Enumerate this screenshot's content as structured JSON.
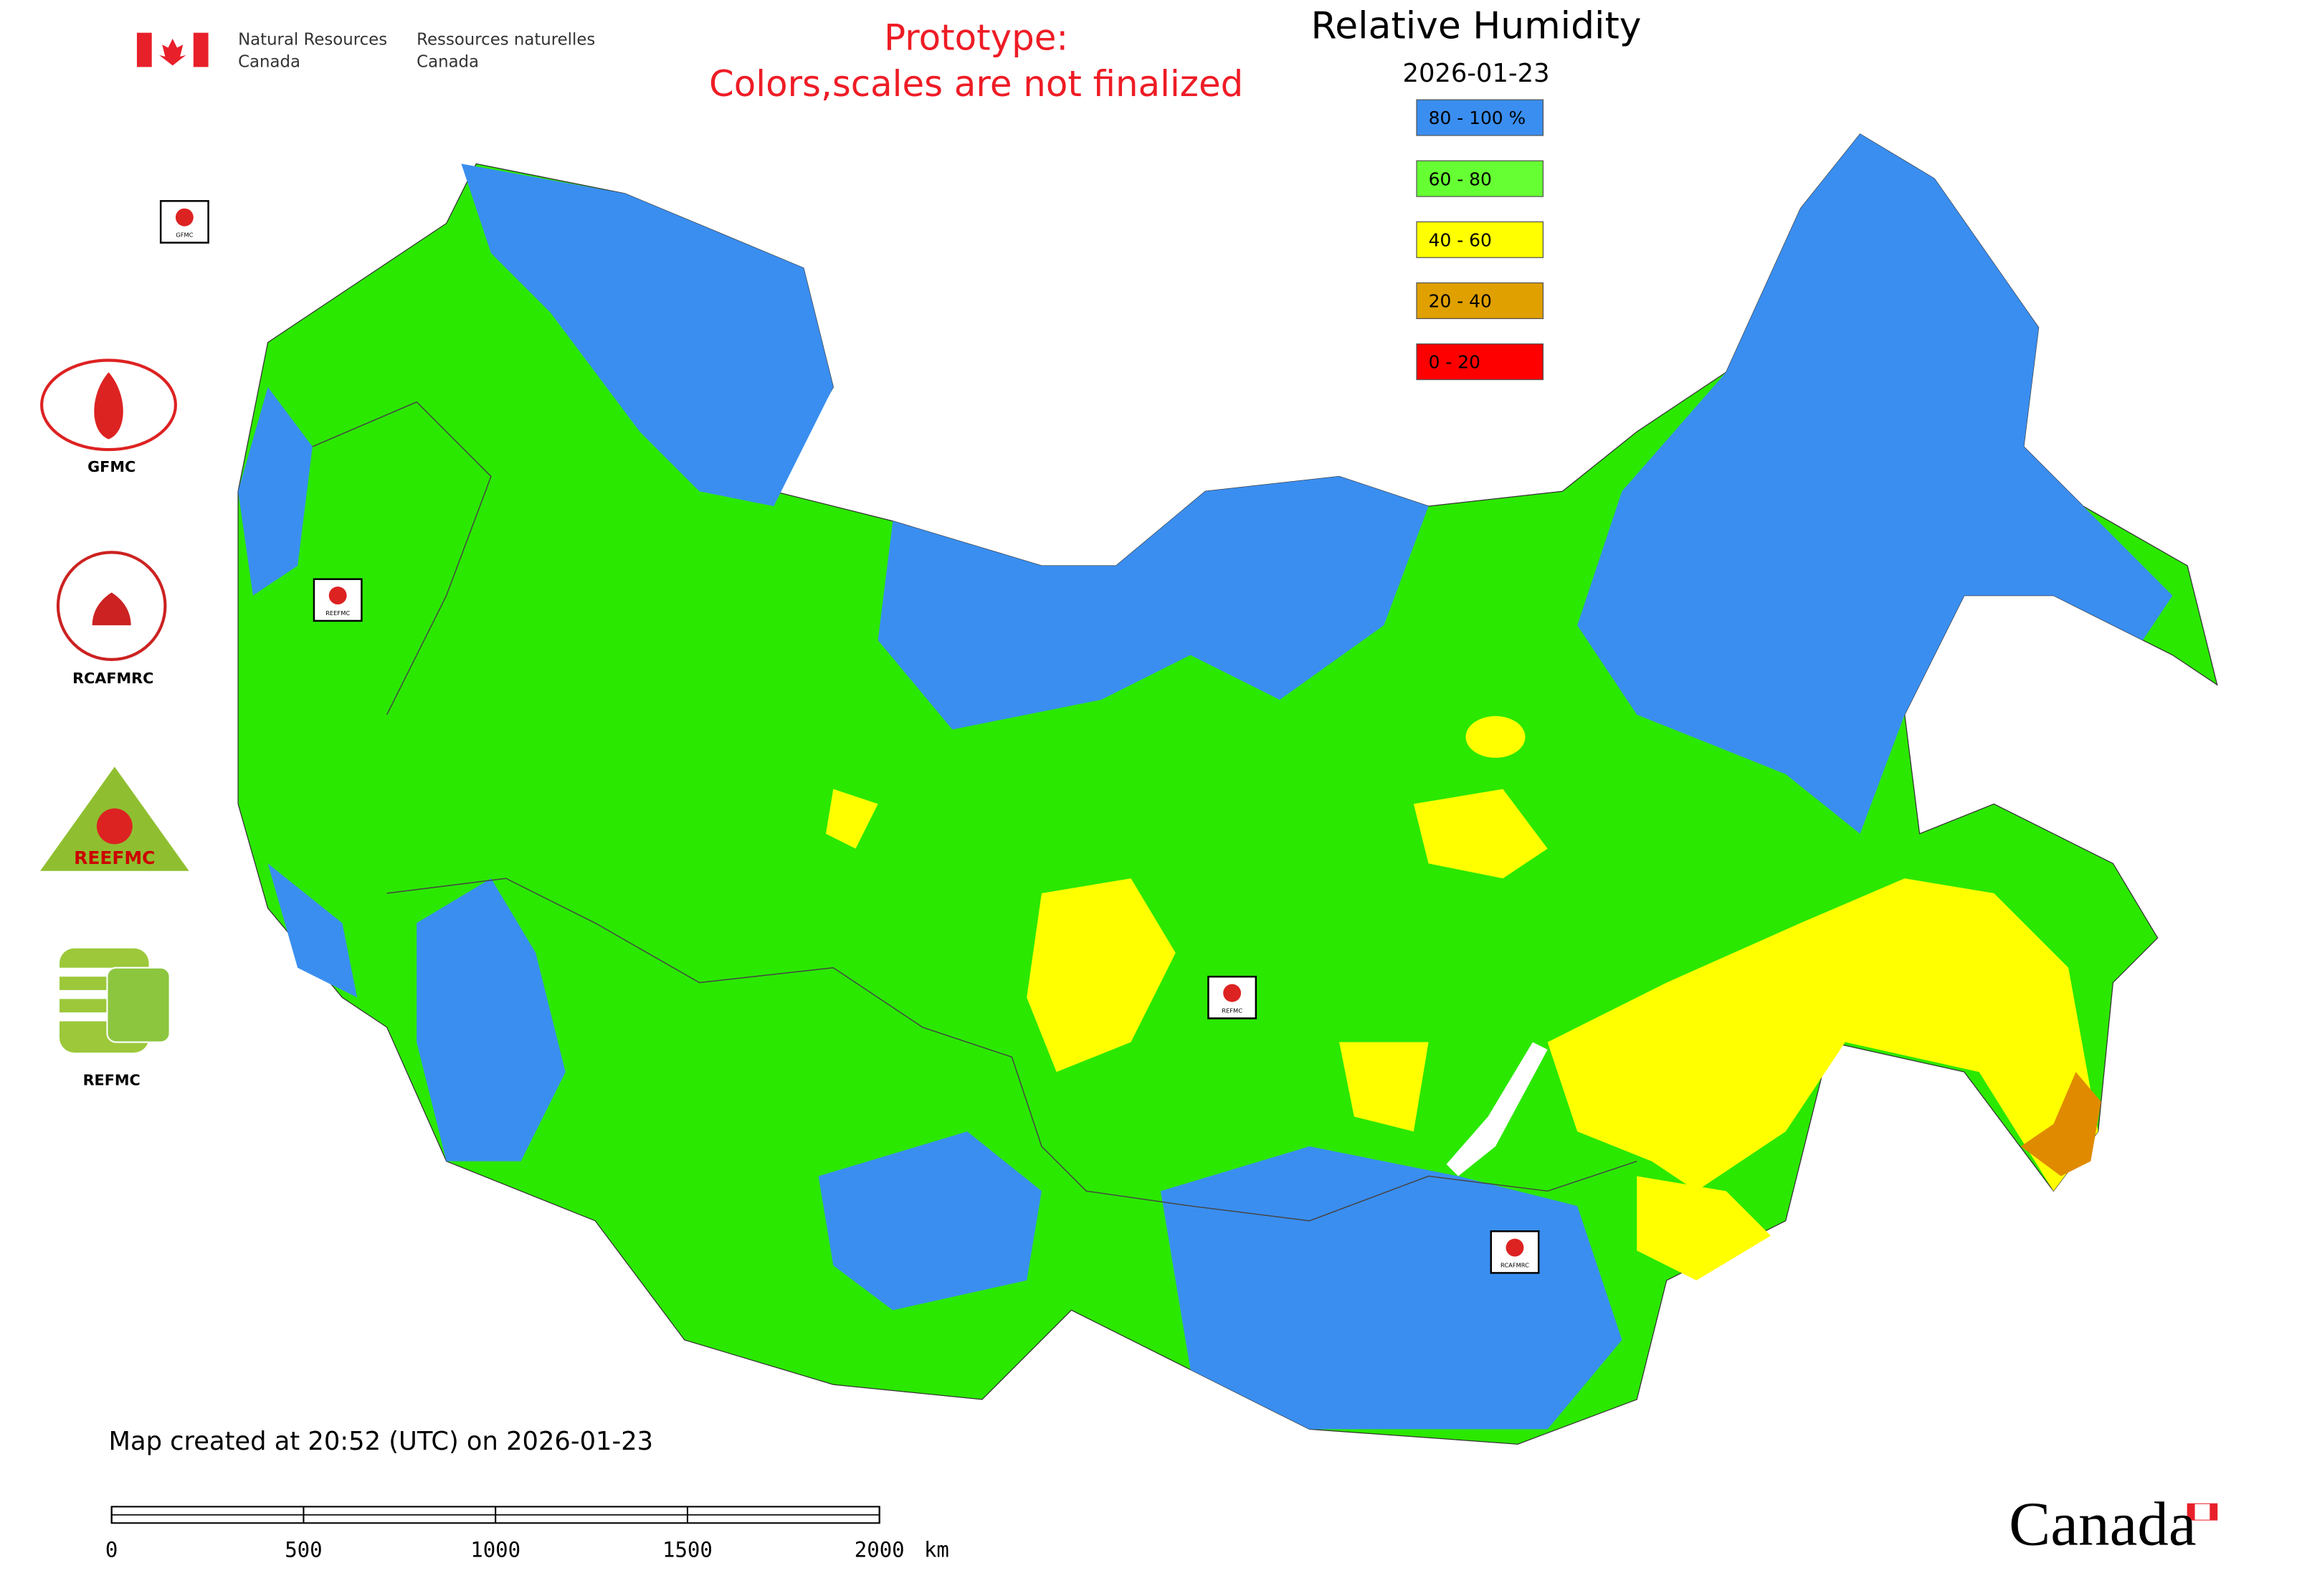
{
  "header": {
    "agency_en": [
      "Natural Resources",
      "Canada"
    ],
    "agency_fr": [
      "Ressources naturelles",
      "Canada"
    ]
  },
  "notice": [
    "Prototype:",
    "Colors,scales are not finalized"
  ],
  "legend": {
    "title": "Relative Humidity",
    "date": "2026-01-23",
    "items": [
      {
        "label": "80 - 100 %",
        "color": "#3a8ef0"
      },
      {
        "label": "60 - 80",
        "color": "#66ff33"
      },
      {
        "label": "40 - 60",
        "color": "#ffff00"
      },
      {
        "label": "20 - 40",
        "color": "#e0a000"
      },
      {
        "label": "0 - 20",
        "color": "#ff0000"
      }
    ]
  },
  "partner_logos": [
    "GFMC",
    "RCAFMRC",
    "REEFMC",
    "REFMC"
  ],
  "map_markers": [
    "GFMC",
    "REEFMC",
    "REFMC",
    "RCAFMRC"
  ],
  "footer": {
    "created": "Map created at 20:52 (UTC) on 2026-01-23",
    "wordmark": "Canada"
  },
  "scale_bar": {
    "ticks": [
      0,
      500,
      1000,
      1500,
      2000
    ],
    "unit": "km"
  }
}
